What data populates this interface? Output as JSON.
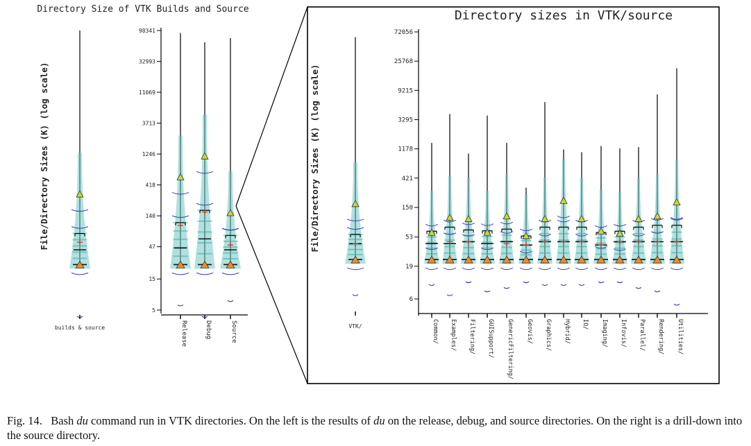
{
  "caption": {
    "label": "Fig. 14.",
    "part1": "Bash ",
    "cmd1": "du",
    "part2": " command run in VTK directories. On the left is the results of ",
    "cmd2": "du",
    "part3": " on the release, debug, and source directories. On the right is a drill-down into the source directory."
  },
  "chart_data": [
    {
      "type": "violin",
      "title": "Directory Size of VTK Builds and Source",
      "xlabel": "",
      "ylabel": "File/Directory Sizes (K)  (log scale)",
      "yscale": "log",
      "yticks": [],
      "categories": [
        "builds & source"
      ],
      "series": [
        {
          "category": "builds & source",
          "min": 4,
          "q1": 25,
          "median": 42,
          "mean": 55,
          "q3": 75,
          "max": 98341,
          "fill": 300
        }
      ]
    },
    {
      "type": "violin",
      "title": "",
      "xlabel": "",
      "ylabel": "",
      "yscale": "log",
      "yticks": [
        "5",
        "15",
        "47",
        "140",
        "418",
        "1246",
        "3713",
        "11069",
        "32993",
        "98341"
      ],
      "ylim": [
        5,
        98341
      ],
      "categories": [
        "Release",
        "Debug",
        "Source"
      ],
      "series": [
        {
          "category": "Release",
          "min": 6,
          "q1": 25,
          "median": 45,
          "mean": 100,
          "q3": 110,
          "max": 90000,
          "fill": 550
        },
        {
          "category": "Debug",
          "min": 4,
          "q1": 25,
          "median": 62,
          "mean": 160,
          "q3": 170,
          "max": 65000,
          "fill": 1150
        },
        {
          "category": "Source",
          "min": 7,
          "q1": 25,
          "median": 42,
          "mean": 50,
          "q3": 70,
          "max": 75000,
          "fill": 155
        }
      ]
    },
    {
      "type": "violin",
      "title": "",
      "xlabel": "",
      "ylabel": "File/Directory Sizes (K)  (log scale)",
      "yscale": "log",
      "yticks": [],
      "categories": [
        "VTK/"
      ],
      "series": [
        {
          "category": "VTK/",
          "min": 7,
          "q1": 24,
          "median": 42,
          "mean": 42,
          "q3": 58,
          "max": 60000,
          "fill": 170
        }
      ]
    },
    {
      "type": "violin",
      "title": "Directory sizes in VTK/source",
      "xlabel": "",
      "ylabel": "",
      "yscale": "log",
      "yticks": [
        "6",
        "19",
        "53",
        "150",
        "421",
        "1178",
        "3295",
        "9215",
        "25768",
        "72056"
      ],
      "ylim": [
        6,
        72056
      ],
      "categories": [
        "Common/",
        "Examples/",
        "Filtering/",
        "GUISupport/",
        "GenericFiltering/",
        "Geovis/",
        "Graphics/",
        "Hybrid/",
        "IO/",
        "Imaging/",
        "Infovis/",
        "Parallel/",
        "Rendering/",
        "Utilities/"
      ],
      "series": [
        {
          "category": "Common/",
          "min": 10,
          "q1": 24,
          "median": 42,
          "mean": 62,
          "q3": 65,
          "max": 1450,
          "fill": 62
        },
        {
          "category": "Examples/",
          "min": 7,
          "q1": 24,
          "median": 42,
          "mean": 45,
          "q3": 75,
          "max": 4000,
          "fill": 105
        },
        {
          "category": "Filtering/",
          "min": 11,
          "q1": 24,
          "median": 45,
          "mean": 45,
          "q3": 68,
          "max": 1000,
          "fill": 100
        },
        {
          "category": "GUISupport/",
          "min": 8,
          "q1": 24,
          "median": 42,
          "mean": 62,
          "q3": 66,
          "max": 3800,
          "fill": 62
        },
        {
          "category": "GenericFiltering/",
          "min": 9,
          "q1": 24,
          "median": 45,
          "mean": 42,
          "q3": 70,
          "max": 1450,
          "fill": 110
        },
        {
          "category": "Geovis/",
          "min": 11,
          "q1": 24,
          "median": 40,
          "mean": 40,
          "q3": 55,
          "max": 300,
          "fill": 55
        },
        {
          "category": "Graphics/",
          "min": 10,
          "q1": 24,
          "median": 45,
          "mean": 45,
          "q3": 75,
          "max": 6100,
          "fill": 100
        },
        {
          "category": "Hybrid/",
          "min": 10,
          "q1": 24,
          "median": 45,
          "mean": 45,
          "q3": 75,
          "max": 1150,
          "fill": 190
        },
        {
          "category": "IO/",
          "min": 10,
          "q1": 24,
          "median": 45,
          "mean": 45,
          "q3": 75,
          "max": 1050,
          "fill": 100
        },
        {
          "category": "Imaging/",
          "min": 11,
          "q1": 24,
          "median": 40,
          "mean": 40,
          "q3": 62,
          "max": 1300,
          "fill": 65
        },
        {
          "category": "Infovis/",
          "min": 11,
          "q1": 24,
          "median": 45,
          "mean": 45,
          "q3": 65,
          "max": 1200,
          "fill": 60
        },
        {
          "category": "Parallel/",
          "min": 9,
          "q1": 24,
          "median": 45,
          "mean": 45,
          "q3": 75,
          "max": 1250,
          "fill": 100
        },
        {
          "category": "Rendering/",
          "min": 8,
          "q1": 24,
          "median": 45,
          "mean": 45,
          "q3": 80,
          "max": 8000,
          "fill": 110
        },
        {
          "category": "Utilities/",
          "min": 5,
          "q1": 24,
          "median": 45,
          "mean": 45,
          "q3": 80,
          "max": 20000,
          "fill": 180
        }
      ]
    }
  ]
}
